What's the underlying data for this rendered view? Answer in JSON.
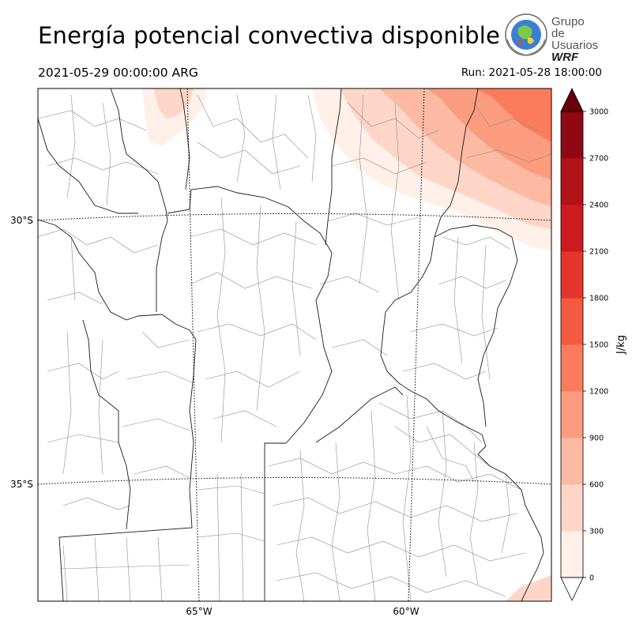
{
  "header": {
    "title": "Energía potencial convectiva disponible",
    "valid_time": "2021-05-29 00:00:00 ARG",
    "run_time": "Run: 2021-05-28 18:00:00"
  },
  "logo": {
    "line1": "Grupo de",
    "line2": "Usuarios",
    "line3": "WRF"
  },
  "map": {
    "parallels": [
      {
        "label": "30°S",
        "lat": -30
      },
      {
        "label": "35°S",
        "lat": -35
      }
    ],
    "meridians": [
      {
        "label": "65°W",
        "lon": -65
      },
      {
        "label": "60°W",
        "lon": -60
      }
    ],
    "colors": {
      "province_border": "#1a1a1a",
      "department_border": "#8c8c8c",
      "graticule": "#000000"
    }
  },
  "colorbar": {
    "label": "J/kg",
    "min": 0,
    "max": 3000,
    "levels": [
      0,
      300,
      600,
      900,
      1200,
      1500,
      1800,
      2100,
      2400,
      2700,
      3000
    ],
    "tick_labels": [
      "0",
      "300",
      "600",
      "900",
      "1200",
      "1500",
      "1800",
      "2100",
      "2400",
      "2700",
      "3000"
    ],
    "colors": [
      "#fff0ea",
      "#fdd6c8",
      "#fcbaa2",
      "#fc9c7e",
      "#fb7c5c",
      "#f45a40",
      "#e3352c",
      "#cb1b1e",
      "#b21318",
      "#8e0912"
    ],
    "extend": "both",
    "under_color": "#ffffff",
    "over_color": "#67000d"
  }
}
